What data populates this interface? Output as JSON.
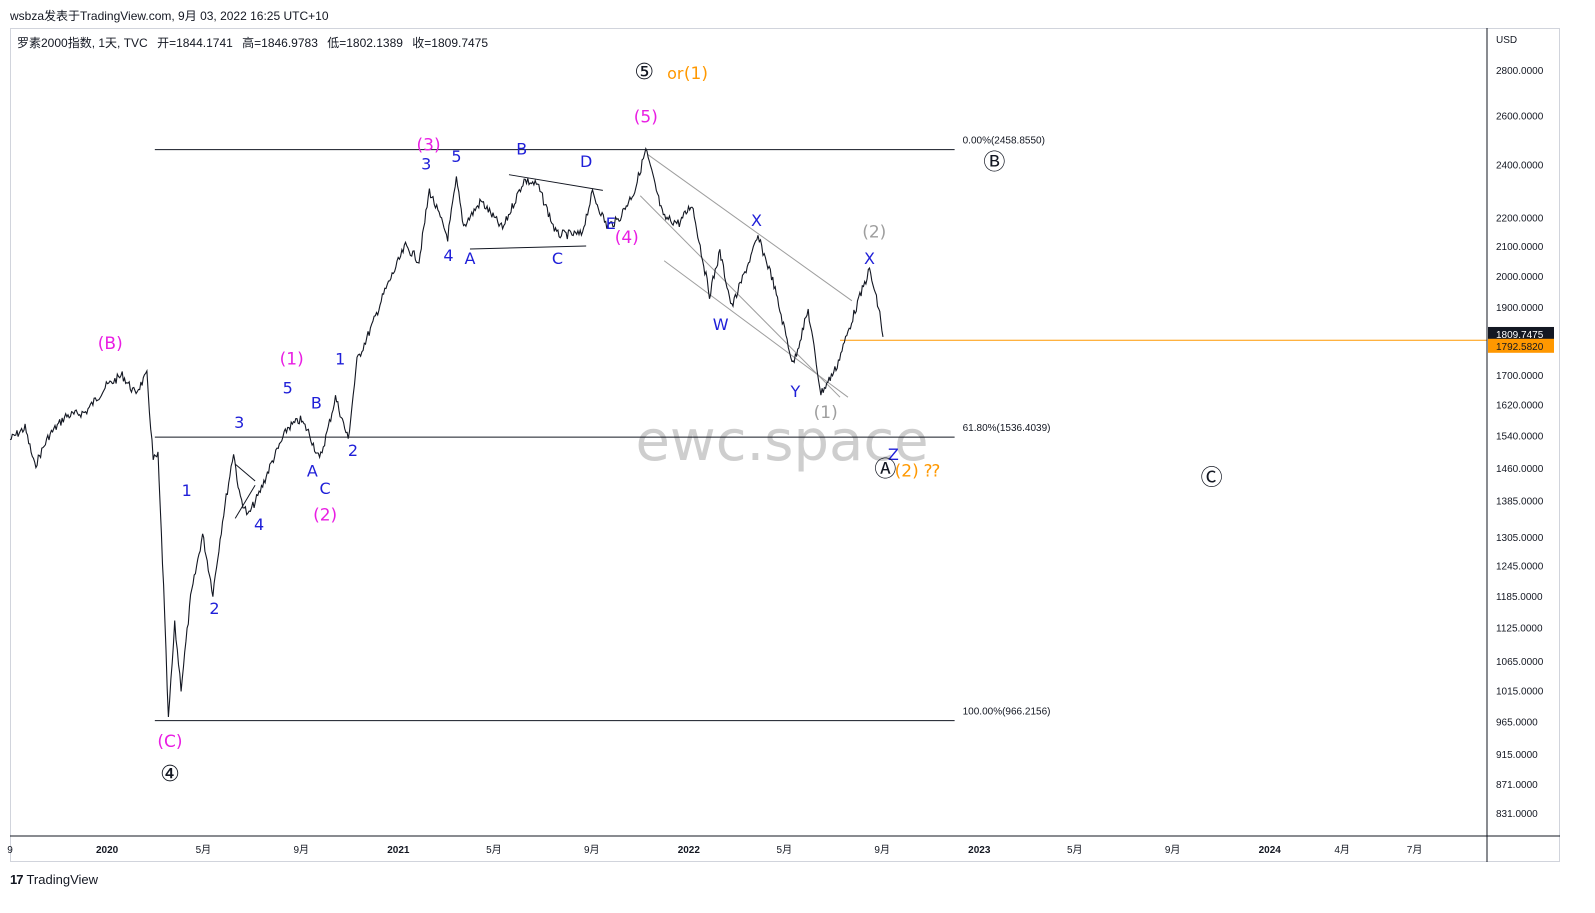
{
  "header": {
    "publisher": "wsbza发表于TradingView.com, 9月 03, 2022 16:25 UTC+10"
  },
  "legend": {
    "symbol": "罗素2000指数, 1天, TVC",
    "open": "开=1844.1741",
    "high": "高=1846.9783",
    "low": "低=1802.1389",
    "close": "收=1809.7475"
  },
  "footer": {
    "logo_mark": "17",
    "logo_text": "TradingView"
  },
  "watermark": "ewc.space",
  "colors": {
    "candle": "#131722",
    "magenta": "#e91ee3",
    "blue": "#1f1fd8",
    "orange": "#ff9800",
    "grey": "#9e9e9e",
    "black": "#131722"
  },
  "chart_data": {
    "type": "line",
    "title": "罗素2000指数",
    "currency": "USD",
    "scale": "log",
    "ylim": [
      800,
      3000
    ],
    "x_range": [
      "2019-09-01",
      "2024-09-30"
    ],
    "x_ticks": [
      {
        "label": "9",
        "date": "2019-09-01"
      },
      {
        "label": "2020",
        "date": "2020-01-01"
      },
      {
        "label": "5月",
        "date": "2020-05-01"
      },
      {
        "label": "9月",
        "date": "2020-09-01"
      },
      {
        "label": "2021",
        "date": "2021-01-01"
      },
      {
        "label": "5月",
        "date": "2021-05-01"
      },
      {
        "label": "9月",
        "date": "2021-09-01"
      },
      {
        "label": "2022",
        "date": "2022-01-01"
      },
      {
        "label": "5月",
        "date": "2022-05-01"
      },
      {
        "label": "9月",
        "date": "2022-09-01"
      },
      {
        "label": "2023",
        "date": "2023-01-01"
      },
      {
        "label": "5月",
        "date": "2023-05-01"
      },
      {
        "label": "9月",
        "date": "2023-09-01"
      },
      {
        "label": "2024",
        "date": "2024-01-01"
      },
      {
        "label": "4月",
        "date": "2024-04-01"
      },
      {
        "label": "7月",
        "date": "2024-07-01"
      }
    ],
    "y_ticks": [
      {
        "label": "USD",
        "value": null
      },
      {
        "label": "2800.0000",
        "value": 2800
      },
      {
        "label": "2600.0000",
        "value": 2600
      },
      {
        "label": "2400.0000",
        "value": 2400
      },
      {
        "label": "2200.0000",
        "value": 2200
      },
      {
        "label": "2100.0000",
        "value": 2100
      },
      {
        "label": "2000.0000",
        "value": 2000
      },
      {
        "label": "1900.0000",
        "value": 1900
      },
      {
        "label": "1700.0000",
        "value": 1700
      },
      {
        "label": "1620.0000",
        "value": 1620
      },
      {
        "label": "1540.0000",
        "value": 1540
      },
      {
        "label": "1460.0000",
        "value": 1460
      },
      {
        "label": "1385.0000",
        "value": 1385
      },
      {
        "label": "1305.0000",
        "value": 1305
      },
      {
        "label": "1245.0000",
        "value": 1245
      },
      {
        "label": "1185.0000",
        "value": 1185
      },
      {
        "label": "1125.0000",
        "value": 1125
      },
      {
        "label": "1065.0000",
        "value": 1065
      },
      {
        "label": "1015.0000",
        "value": 1015
      },
      {
        "label": "965.0000",
        "value": 965
      },
      {
        "label": "915.0000",
        "value": 915
      },
      {
        "label": "871.0000",
        "value": 871
      },
      {
        "label": "831.0000",
        "value": 831
      }
    ],
    "price_badges": [
      {
        "label": "1809.7475",
        "value": 1809.7475,
        "style": "dark"
      },
      {
        "label": "1792.5820",
        "value": 1792.582,
        "style": "orange"
      }
    ],
    "series": [
      {
        "values": [
          [
            "2019-09-01",
            1530
          ],
          [
            "2019-09-20",
            1560
          ],
          [
            "2019-10-02",
            1465
          ],
          [
            "2019-10-20",
            1540
          ],
          [
            "2019-11-10",
            1590
          ],
          [
            "2019-12-05",
            1600
          ],
          [
            "2019-12-31",
            1670
          ],
          [
            "2020-01-20",
            1700
          ],
          [
            "2020-02-05",
            1650
          ],
          [
            "2020-02-20",
            1700
          ],
          [
            "2020-02-28",
            1480
          ],
          [
            "2020-03-05",
            1490
          ],
          [
            "2020-03-12",
            1200
          ],
          [
            "2020-03-18",
            966
          ],
          [
            "2020-03-26",
            1130
          ],
          [
            "2020-04-03",
            1020
          ],
          [
            "2020-04-15",
            1180
          ],
          [
            "2020-04-30",
            1310
          ],
          [
            "2020-05-13",
            1190
          ],
          [
            "2020-05-25",
            1340
          ],
          [
            "2020-06-08",
            1500
          ],
          [
            "2020-06-15",
            1400
          ],
          [
            "2020-06-26",
            1350
          ],
          [
            "2020-07-10",
            1400
          ],
          [
            "2020-07-25",
            1470
          ],
          [
            "2020-08-15",
            1560
          ],
          [
            "2020-08-31",
            1580
          ],
          [
            "2020-09-10",
            1550
          ],
          [
            "2020-09-24",
            1480
          ],
          [
            "2020-10-05",
            1560
          ],
          [
            "2020-10-14",
            1640
          ],
          [
            "2020-10-30",
            1530
          ],
          [
            "2020-11-10",
            1740
          ],
          [
            "2020-11-30",
            1850
          ],
          [
            "2020-12-15",
            1950
          ],
          [
            "2021-01-10",
            2100
          ],
          [
            "2021-01-27",
            2050
          ],
          [
            "2021-02-09",
            2300
          ],
          [
            "2021-03-04",
            2130
          ],
          [
            "2021-03-15",
            2340
          ],
          [
            "2021-03-24",
            2170
          ],
          [
            "2021-04-15",
            2260
          ],
          [
            "2021-05-12",
            2160
          ],
          [
            "2021-06-08",
            2340
          ],
          [
            "2021-06-25",
            2320
          ],
          [
            "2021-07-19",
            2140
          ],
          [
            "2021-08-19",
            2140
          ],
          [
            "2021-09-02",
            2290
          ],
          [
            "2021-09-20",
            2170
          ],
          [
            "2021-10-04",
            2190
          ],
          [
            "2021-10-25",
            2300
          ],
          [
            "2021-11-08",
            2458
          ],
          [
            "2021-11-30",
            2200
          ],
          [
            "2021-12-20",
            2180
          ],
          [
            "2022-01-05",
            2250
          ],
          [
            "2022-01-27",
            1940
          ],
          [
            "2022-02-09",
            2080
          ],
          [
            "2022-02-24",
            1900
          ],
          [
            "2022-03-29",
            2130
          ],
          [
            "2022-04-15",
            2000
          ],
          [
            "2022-05-12",
            1730
          ],
          [
            "2022-05-31",
            1890
          ],
          [
            "2022-06-16",
            1650
          ],
          [
            "2022-07-05",
            1720
          ],
          [
            "2022-07-29",
            1890
          ],
          [
            "2022-08-16",
            2020
          ],
          [
            "2022-08-29",
            1880
          ],
          [
            "2022-09-02",
            1810
          ]
        ]
      }
    ],
    "fib_levels": [
      {
        "label": "0.00%(2458.8550)",
        "value": 2458.855,
        "x_start": "2020-03-01",
        "x_end": "2022-12-01"
      },
      {
        "label": "61.80%(1536.4039)",
        "value": 1536.4039,
        "x_start": "2020-03-01",
        "x_end": "2022-12-01"
      },
      {
        "label": "100.00%(966.2156)",
        "value": 966.2156,
        "x_start": "2020-03-01",
        "x_end": "2022-12-01"
      }
    ],
    "last_price_line": {
      "value": 1800,
      "x_start": "2022-07-10",
      "color": "orange"
    },
    "trendlines": [
      {
        "from": [
          "2020-06-10",
          1470
        ],
        "to": [
          "2020-07-05",
          1430
        ],
        "color": "black"
      },
      {
        "from": [
          "2020-06-10",
          1345
        ],
        "to": [
          "2020-07-05",
          1420
        ],
        "color": "black"
      },
      {
        "from": [
          "2021-04-01",
          2090
        ],
        "to": [
          "2021-08-25",
          2100
        ],
        "color": "black"
      },
      {
        "from": [
          "2021-05-20",
          2360
        ],
        "to": [
          "2021-09-15",
          2300
        ],
        "color": "black"
      },
      {
        "from": [
          "2021-11-10",
          2440
        ],
        "to": [
          "2022-07-25",
          1920
        ],
        "color": "grey"
      },
      {
        "from": [
          "2021-11-01",
          2280
        ],
        "to": [
          "2022-07-10",
          1640
        ],
        "color": "grey"
      },
      {
        "from": [
          "2021-12-01",
          2050
        ],
        "to": [
          "2022-07-20",
          1640
        ],
        "color": "grey"
      }
    ],
    "annotations": [
      {
        "text": "⑤",
        "x": "2021-11-06",
        "y": 2760,
        "color": "black",
        "circle": true
      },
      {
        "text": "or",
        "x": "2021-12-15",
        "y": 2760,
        "color": "orange"
      },
      {
        "text": "(1)",
        "x": "2022-01-10",
        "y": 2760,
        "color": "orange"
      },
      {
        "text": "(5)",
        "x": "2021-11-08",
        "y": 2570,
        "color": "magenta"
      },
      {
        "text": "(3)",
        "x": "2021-02-08",
        "y": 2455,
        "color": "magenta"
      },
      {
        "text": "3",
        "x": "2021-02-05",
        "y": 2380,
        "color": "blue"
      },
      {
        "text": "5",
        "x": "2021-03-15",
        "y": 2410,
        "color": "blue"
      },
      {
        "text": "B",
        "x": "2021-06-05",
        "y": 2440,
        "color": "blue"
      },
      {
        "text": "D",
        "x": "2021-08-25",
        "y": 2390,
        "color": "blue"
      },
      {
        "text": "E",
        "x": "2021-09-25",
        "y": 2160,
        "color": "blue"
      },
      {
        "text": "(4)",
        "x": "2021-10-15",
        "y": 2110,
        "color": "magenta"
      },
      {
        "text": "4",
        "x": "2021-03-05",
        "y": 2050,
        "color": "blue"
      },
      {
        "text": "A",
        "x": "2021-04-01",
        "y": 2040,
        "color": "blue"
      },
      {
        "text": "C",
        "x": "2021-07-20",
        "y": 2040,
        "color": "blue"
      },
      {
        "text": "X",
        "x": "2022-03-27",
        "y": 2170,
        "color": "blue"
      },
      {
        "text": "W",
        "x": "2022-02-10",
        "y": 1830,
        "color": "blue"
      },
      {
        "text": "Y",
        "x": "2022-05-15",
        "y": 1640,
        "color": "blue"
      },
      {
        "text": "(1)",
        "x": "2022-06-22",
        "y": 1585,
        "color": "grey"
      },
      {
        "text": "(2)",
        "x": "2022-08-22",
        "y": 2130,
        "color": "grey"
      },
      {
        "text": "X",
        "x": "2022-08-16",
        "y": 2040,
        "color": "blue"
      },
      {
        "text": "Z",
        "x": "2022-09-15",
        "y": 1480,
        "color": "blue"
      },
      {
        "text": "Ⓐ",
        "x": "2022-09-05",
        "y": 1440,
        "color": "black",
        "circle": true
      },
      {
        "text": "(2) ⁇",
        "x": "2022-10-15",
        "y": 1440,
        "color": "orange"
      },
      {
        "text": "Ⓑ",
        "x": "2023-01-20",
        "y": 2380,
        "color": "black",
        "circle": true
      },
      {
        "text": "Ⓒ",
        "x": "2023-10-20",
        "y": 1420,
        "color": "black",
        "circle": true
      },
      {
        "text": "(B)",
        "x": "2020-01-05",
        "y": 1775,
        "color": "magenta"
      },
      {
        "text": "(1)",
        "x": "2020-08-20",
        "y": 1730,
        "color": "magenta"
      },
      {
        "text": "5",
        "x": "2020-08-15",
        "y": 1650,
        "color": "blue"
      },
      {
        "text": "1",
        "x": "2020-10-20",
        "y": 1730,
        "color": "blue"
      },
      {
        "text": "B",
        "x": "2020-09-20",
        "y": 1610,
        "color": "blue"
      },
      {
        "text": "3",
        "x": "2020-06-15",
        "y": 1560,
        "color": "blue"
      },
      {
        "text": "2",
        "x": "2020-11-05",
        "y": 1490,
        "color": "blue"
      },
      {
        "text": "A",
        "x": "2020-09-15",
        "y": 1440,
        "color": "blue"
      },
      {
        "text": "C",
        "x": "2020-10-01",
        "y": 1400,
        "color": "blue"
      },
      {
        "text": "(2)",
        "x": "2020-10-01",
        "y": 1340,
        "color": "magenta"
      },
      {
        "text": "1",
        "x": "2020-04-10",
        "y": 1395,
        "color": "blue"
      },
      {
        "text": "4",
        "x": "2020-07-10",
        "y": 1320,
        "color": "blue"
      },
      {
        "text": "2",
        "x": "2020-05-15",
        "y": 1150,
        "color": "blue"
      },
      {
        "text": "(C)",
        "x": "2020-03-20",
        "y": 925,
        "color": "magenta"
      },
      {
        "text": "④",
        "x": "2020-03-20",
        "y": 875,
        "color": "black",
        "circle": true
      }
    ]
  }
}
